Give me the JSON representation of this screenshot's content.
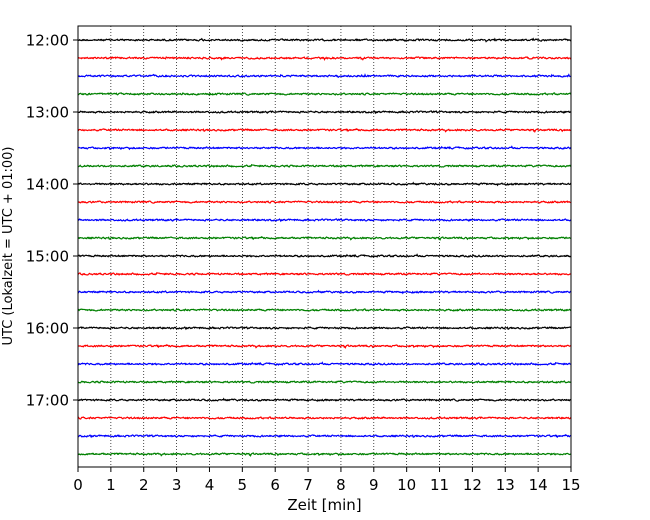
{
  "chart_data": {
    "type": "line",
    "title": "",
    "xlabel": "Zeit  [min]",
    "ylabel": "UTC (Lokalzeit = UTC + 01:00)",
    "xlim": [
      0,
      15
    ],
    "x_ticks": [
      "0",
      "1",
      "2",
      "3",
      "4",
      "5",
      "6",
      "7",
      "8",
      "9",
      "10",
      "11",
      "12",
      "13",
      "14",
      "15"
    ],
    "y_ticks": [
      "12:00",
      "13:00",
      "14:00",
      "15:00",
      "16:00",
      "17:00"
    ],
    "grid": "vertical dotted at each minute",
    "trace_start": "12:00",
    "trace_interval_minutes": 15,
    "trace_count": 24,
    "trace_colors": [
      "#000000",
      "#ff0000",
      "#0000ff",
      "#008000"
    ],
    "traces": [
      {
        "start": "12:00",
        "color": "#000000"
      },
      {
        "start": "12:15",
        "color": "#ff0000"
      },
      {
        "start": "12:30",
        "color": "#0000ff"
      },
      {
        "start": "12:45",
        "color": "#008000"
      },
      {
        "start": "13:00",
        "color": "#000000"
      },
      {
        "start": "13:15",
        "color": "#ff0000"
      },
      {
        "start": "13:30",
        "color": "#0000ff"
      },
      {
        "start": "13:45",
        "color": "#008000"
      },
      {
        "start": "14:00",
        "color": "#000000"
      },
      {
        "start": "14:15",
        "color": "#ff0000"
      },
      {
        "start": "14:30",
        "color": "#0000ff"
      },
      {
        "start": "14:45",
        "color": "#008000"
      },
      {
        "start": "15:00",
        "color": "#000000"
      },
      {
        "start": "15:15",
        "color": "#ff0000"
      },
      {
        "start": "15:30",
        "color": "#0000ff"
      },
      {
        "start": "15:45",
        "color": "#008000"
      },
      {
        "start": "16:00",
        "color": "#000000"
      },
      {
        "start": "16:15",
        "color": "#ff0000"
      },
      {
        "start": "16:30",
        "color": "#0000ff"
      },
      {
        "start": "16:45",
        "color": "#008000"
      },
      {
        "start": "17:00",
        "color": "#000000"
      },
      {
        "start": "17:15",
        "color": "#ff0000"
      },
      {
        "start": "17:30",
        "color": "#0000ff"
      },
      {
        "start": "17:45",
        "color": "#008000"
      }
    ]
  }
}
